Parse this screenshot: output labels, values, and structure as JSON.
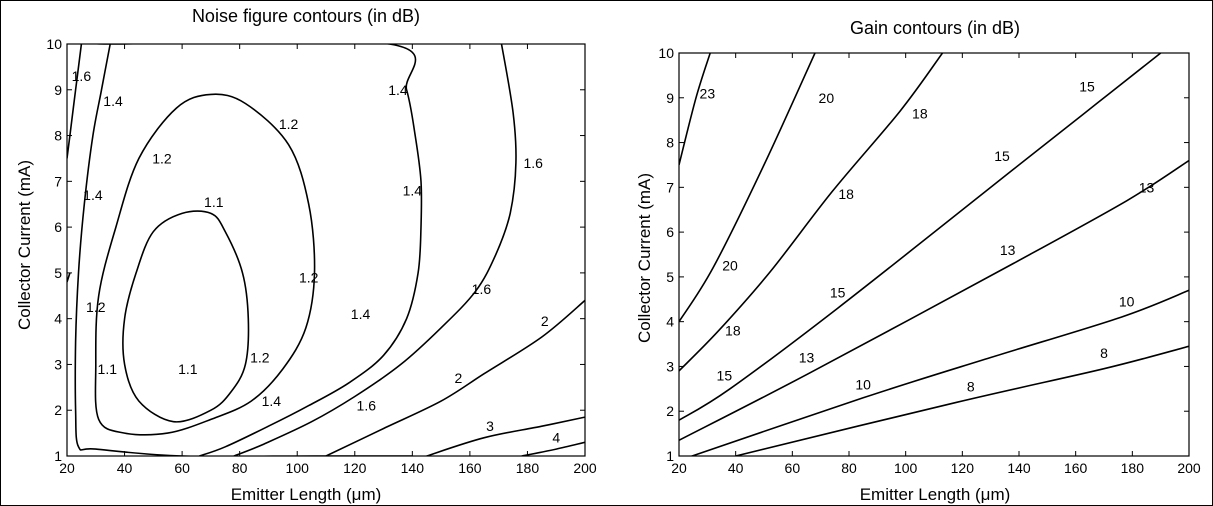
{
  "chart_data": [
    {
      "type": "contour",
      "title": "Noise figure contours (in dB)",
      "xlabel": "Emitter Length (μm)",
      "ylabel": "Collector Current (mA)",
      "xlim": [
        20,
        200
      ],
      "ylim": [
        1,
        10
      ],
      "xticks": [
        20,
        40,
        60,
        80,
        100,
        120,
        140,
        160,
        180,
        200
      ],
      "yticks": [
        1,
        2,
        3,
        4,
        5,
        6,
        7,
        8,
        9,
        10
      ],
      "contours": [
        {
          "level": "1.1",
          "closed": true,
          "points": [
            [
              57,
              1.75
            ],
            [
              45,
              2.2
            ],
            [
              40,
              3.0
            ],
            [
              40,
              4.0
            ],
            [
              44,
              5.0
            ],
            [
              50,
              5.9
            ],
            [
              60,
              6.3
            ],
            [
              70,
              6.3
            ],
            [
              75,
              5.9
            ],
            [
              81,
              5.0
            ],
            [
              83,
              4.0
            ],
            [
              82,
              3.0
            ],
            [
              77,
              2.4
            ],
            [
              70,
              2.0
            ]
          ],
          "labels": [
            {
              "text": "1.1",
              "x": 71,
              "y": 6.55
            },
            {
              "text": "1.1",
              "x": 34,
              "y": 2.9
            },
            {
              "text": "1.1",
              "x": 62,
              "y": 2.9
            }
          ]
        },
        {
          "level": "1.2",
          "closed": true,
          "points": [
            [
              40,
              1.5
            ],
            [
              31,
              1.8
            ],
            [
              30,
              3.0
            ],
            [
              31,
              4.5
            ],
            [
              37,
              6.0
            ],
            [
              45,
              7.5
            ],
            [
              58,
              8.6
            ],
            [
              70,
              8.9
            ],
            [
              82,
              8.7
            ],
            [
              97,
              7.8
            ],
            [
              104,
              6.5
            ],
            [
              106,
              5.0
            ],
            [
              103,
              3.8
            ],
            [
              95,
              2.9
            ],
            [
              84,
              2.2
            ],
            [
              70,
              1.8
            ],
            [
              55,
              1.5
            ]
          ],
          "labels": [
            {
              "text": "1.2",
              "x": 97,
              "y": 8.25
            },
            {
              "text": "1.2",
              "x": 53,
              "y": 7.5
            },
            {
              "text": "1.2",
              "x": 30,
              "y": 4.25
            },
            {
              "text": "1.2",
              "x": 104,
              "y": 4.9
            },
            {
              "text": "1.2",
              "x": 87,
              "y": 3.15
            }
          ]
        },
        {
          "level": "1.4",
          "closed": false,
          "points": [
            [
              140,
              1
            ],
            [
              106,
              1
            ],
            [
              60,
              1
            ],
            [
              30,
              1.15
            ],
            [
              24,
              1.2
            ],
            [
              23,
              2.0
            ],
            [
              23,
              3.5
            ],
            [
              24,
              5.0
            ],
            [
              26,
              6.5
            ],
            [
              29,
              8.0
            ],
            [
              32,
              9.0
            ],
            [
              35,
              10
            ],
            [
              35,
              10
            ],
            [
              132,
              10
            ],
            [
              138,
              9.0
            ],
            [
              141,
              8.0
            ],
            [
              143,
              7.0
            ],
            [
              143,
              6.0
            ],
            [
              142,
              5.0
            ],
            [
              138,
              4.0
            ],
            [
              130,
              3.2
            ],
            [
              118,
              2.6
            ],
            [
              104,
              2.1
            ],
            [
              90,
              1.65
            ],
            [
              75,
              1.2
            ],
            [
              66,
              1
            ]
          ],
          "labels": [
            {
              "text": "1.4",
              "x": 36,
              "y": 8.75
            },
            {
              "text": "1.4",
              "x": 29,
              "y": 6.7
            },
            {
              "text": "1.4",
              "x": 135,
              "y": 9.0
            },
            {
              "text": "1.4",
              "x": 140,
              "y": 6.8
            },
            {
              "text": "1.4",
              "x": 122,
              "y": 4.1
            },
            {
              "text": "1.4",
              "x": 91,
              "y": 2.2
            }
          ]
        },
        {
          "level": "1.6",
          "closed": false,
          "points": [
            [
              25,
              10
            ],
            [
              23,
              9.0
            ],
            [
              21,
              8.0
            ],
            [
              20,
              7.5
            ]
          ],
          "labels": [
            {
              "text": "1.6",
              "x": 25,
              "y": 9.3
            }
          ]
        },
        {
          "level": "1.6",
          "closed": false,
          "points": [
            [
              20,
              4.8
            ],
            [
              21,
              5.0
            ]
          ],
          "labels": []
        },
        {
          "level": "1.6",
          "closed": false,
          "points": [
            [
              171,
              10
            ],
            [
              175,
              8.5
            ],
            [
              176,
              7.4
            ],
            [
              174,
              6.3
            ],
            [
              169,
              5.4
            ],
            [
              162,
              4.6
            ],
            [
              150,
              3.8
            ],
            [
              136,
              3.0
            ],
            [
              120,
              2.3
            ],
            [
              105,
              1.75
            ],
            [
              88,
              1.25
            ],
            [
              78,
              1
            ]
          ],
          "labels": [
            {
              "text": "1.6",
              "x": 182,
              "y": 7.4
            },
            {
              "text": "1.6",
              "x": 164,
              "y": 4.65
            },
            {
              "text": "1.6",
              "x": 124,
              "y": 2.1
            }
          ]
        },
        {
          "level": "2",
          "closed": false,
          "points": [
            [
              110,
              1
            ],
            [
              130,
              1.6
            ],
            [
              150,
              2.2
            ],
            [
              165,
              2.8
            ],
            [
              185,
              3.6
            ],
            [
              200,
              4.4
            ]
          ],
          "labels": [
            {
              "text": "2",
              "x": 186,
              "y": 3.95
            },
            {
              "text": "2",
              "x": 156,
              "y": 2.7
            }
          ]
        },
        {
          "level": "3",
          "closed": false,
          "points": [
            [
              145,
              1
            ],
            [
              165,
              1.4
            ],
            [
              185,
              1.65
            ],
            [
              200,
              1.85
            ]
          ],
          "labels": [
            {
              "text": "3",
              "x": 167,
              "y": 1.65
            }
          ]
        },
        {
          "level": "4",
          "closed": false,
          "points": [
            [
              178,
              1
            ],
            [
              190,
              1.15
            ],
            [
              200,
              1.3
            ]
          ],
          "labels": [
            {
              "text": "4",
              "x": 190,
              "y": 1.4
            }
          ]
        }
      ]
    },
    {
      "type": "contour",
      "title": "Gain contours (in dB)",
      "xlabel": "Emitter Length (μm)",
      "ylabel": "Collector Current (mA)",
      "xlim": [
        20,
        200
      ],
      "ylim": [
        1,
        10
      ],
      "xticks": [
        20,
        40,
        60,
        80,
        100,
        120,
        140,
        160,
        180,
        200
      ],
      "yticks": [
        1,
        2,
        3,
        4,
        5,
        6,
        7,
        8,
        9,
        10
      ],
      "contours": [
        {
          "level": "23",
          "points": [
            [
              20,
              7.5
            ],
            [
              26,
              9.0
            ],
            [
              31,
              10
            ]
          ],
          "labels": [
            {
              "text": "23",
              "x": 30,
              "y": 9.1
            }
          ]
        },
        {
          "level": "20",
          "points": [
            [
              20,
              4.0
            ],
            [
              32,
              5.2
            ],
            [
              50,
              7.5
            ],
            [
              68,
              10
            ]
          ],
          "labels": [
            {
              "text": "20",
              "x": 72,
              "y": 9.0
            },
            {
              "text": "20",
              "x": 38,
              "y": 5.25
            }
          ]
        },
        {
          "level": "18",
          "points": [
            [
              20,
              2.9
            ],
            [
              34,
              3.8
            ],
            [
              52,
              5.1
            ],
            [
              74,
              6.9
            ],
            [
              98,
              8.7
            ],
            [
              113,
              10
            ]
          ],
          "labels": [
            {
              "text": "18",
              "x": 105,
              "y": 8.65
            },
            {
              "text": "18",
              "x": 79,
              "y": 6.85
            },
            {
              "text": "18",
              "x": 39,
              "y": 3.8
            }
          ]
        },
        {
          "level": "15",
          "points": [
            [
              20,
              1.8
            ],
            [
              38,
              2.5
            ],
            [
              76,
              4.3
            ],
            [
              138,
              7.4
            ],
            [
              168,
              8.9
            ],
            [
              190,
              10
            ]
          ],
          "labels": [
            {
              "text": "15",
              "x": 164,
              "y": 9.25
            },
            {
              "text": "15",
              "x": 134,
              "y": 7.7
            },
            {
              "text": "15",
              "x": 76,
              "y": 4.65
            },
            {
              "text": "15",
              "x": 36,
              "y": 2.8
            }
          ]
        },
        {
          "level": "13",
          "points": [
            [
              20,
              1.35
            ],
            [
              66,
              2.85
            ],
            [
              138,
              5.3
            ],
            [
              178,
              6.7
            ],
            [
              200,
              7.6
            ]
          ],
          "labels": [
            {
              "text": "13",
              "x": 185,
              "y": 7.0
            },
            {
              "text": "13",
              "x": 136,
              "y": 5.6
            },
            {
              "text": "13",
              "x": 65,
              "y": 3.2
            }
          ]
        },
        {
          "level": "10",
          "points": [
            [
              20,
              0.9
            ],
            [
              85,
              2.3
            ],
            [
              130,
              3.2
            ],
            [
              176,
              4.1
            ],
            [
              200,
              4.7
            ]
          ],
          "labels": [
            {
              "text": "10",
              "x": 178,
              "y": 4.45
            },
            {
              "text": "10",
              "x": 85,
              "y": 2.6
            }
          ]
        },
        {
          "level": "8",
          "points": [
            [
              40,
              1.0
            ],
            [
              118,
              2.2
            ],
            [
              170,
              2.95
            ],
            [
              200,
              3.45
            ]
          ],
          "labels": [
            {
              "text": "8",
              "x": 170,
              "y": 3.3
            },
            {
              "text": "8",
              "x": 123,
              "y": 2.55
            }
          ]
        }
      ]
    }
  ]
}
